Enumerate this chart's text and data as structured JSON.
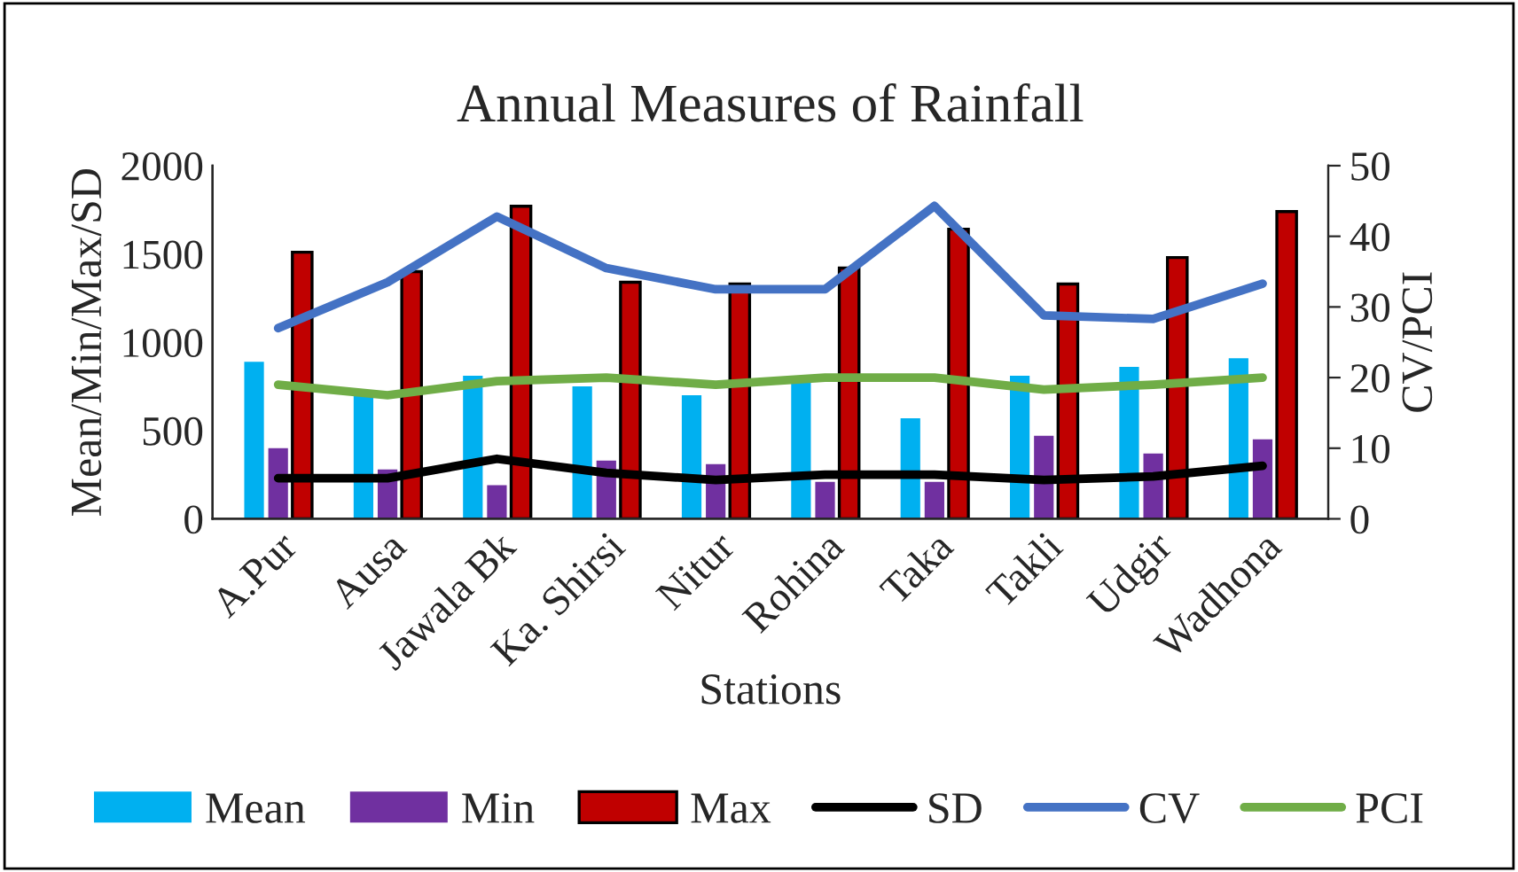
{
  "chart_data": {
    "type": "bar",
    "title": "Annual Measures of Rainfall",
    "xlabel": "Stations",
    "ylabel": "Mean/Min/Max/SD",
    "y2label": "CV/PCI",
    "categories": [
      "A.Pur",
      "Ausa",
      "Jawala Bk",
      "Ka. Shirsi",
      "Nitur",
      "Rohina",
      "Taka",
      "Takli",
      "Udgir",
      "Wadhona"
    ],
    "series": [
      {
        "name": "Mean",
        "color": "#00b0f0",
        "values": [
          890,
          700,
          810,
          750,
          700,
          780,
          570,
          810,
          860,
          910
        ]
      },
      {
        "name": "Min",
        "color": "#7030a0",
        "values": [
          400,
          280,
          190,
          330,
          310,
          210,
          210,
          470,
          370,
          450
        ]
      },
      {
        "name": "Max",
        "color": "#c00000",
        "values": [
          1510,
          1400,
          1770,
          1340,
          1330,
          1420,
          1640,
          1330,
          1480,
          1740
        ]
      },
      {
        "name": "SD",
        "type": "line",
        "color": "#000000",
        "values": [
          230,
          230,
          340,
          260,
          220,
          250,
          250,
          220,
          240,
          300
        ]
      },
      {
        "name": "CV",
        "type": "line",
        "axis": "y2",
        "color": "#4472c4",
        "values": [
          27,
          33.5,
          42.8,
          35.5,
          32.5,
          32.5,
          44.3,
          28.8,
          28.3,
          33.3
        ]
      },
      {
        "name": "PCI",
        "type": "line",
        "axis": "y2",
        "color": "#70ad47",
        "values": [
          19,
          17.5,
          19.5,
          20,
          19,
          20,
          20,
          18.3,
          19,
          20
        ]
      }
    ],
    "ylim": [
      0,
      2000
    ],
    "yticks": [
      0,
      500,
      1000,
      1500,
      2000
    ],
    "y2lim": [
      0,
      50
    ],
    "y2ticks": [
      0,
      10,
      20,
      30,
      40,
      50
    ],
    "grid": false,
    "legend": "bottom",
    "marker": "none",
    "line_style": "solid"
  }
}
